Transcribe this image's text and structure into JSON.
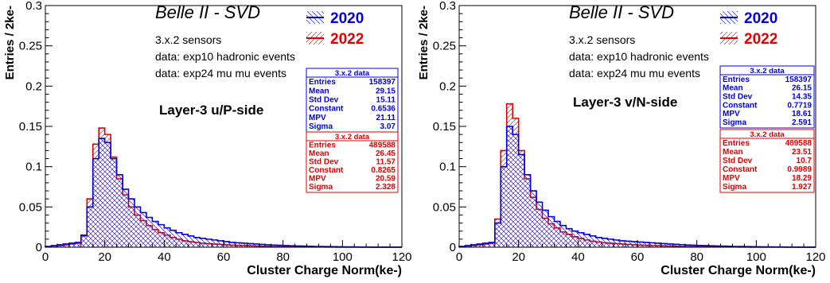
{
  "chart_data": [
    {
      "type": "histogram",
      "title": "Belle II - SVD",
      "layer_label": "Layer-3 u/P-side",
      "info_lines": [
        "3.x.2 sensors",
        "data: exp10 hadronic events",
        "data: exp24 mu mu events"
      ],
      "xlabel": "Cluster Charge Norm(ke-)",
      "ylabel": "Entries / 2ke-",
      "xlim": [
        0,
        120
      ],
      "ylim": [
        0,
        0.3
      ],
      "xticks": [
        "0",
        "20",
        "40",
        "60",
        "80",
        "100",
        "120"
      ],
      "yticks": [
        "0",
        "0.05",
        "0.1",
        "0.15",
        "0.2",
        "0.25",
        "0.3"
      ],
      "legend": [
        {
          "name": "2020",
          "color": "#0000e0"
        },
        {
          "name": "2022",
          "color": "#e00000"
        }
      ],
      "stat_boxes": [
        {
          "title": "3.x.2 data",
          "color": "#0000e0",
          "rows": [
            [
              "Entries",
              "158397"
            ],
            [
              "Mean",
              "29.15"
            ],
            [
              "Std Dev",
              "15.11"
            ],
            [
              "Constant",
              "0.6536"
            ],
            [
              "MPV",
              "21.11"
            ],
            [
              "Sigma",
              "3.07"
            ]
          ]
        },
        {
          "title": "3.x.2 data",
          "color": "#e00000",
          "rows": [
            [
              "Entries",
              "489588"
            ],
            [
              "Mean",
              "26.45"
            ],
            [
              "Std Dev",
              "11.57"
            ],
            [
              "Constant",
              "0.8265"
            ],
            [
              "MPV",
              "20.59"
            ],
            [
              "Sigma",
              "2.328"
            ]
          ]
        }
      ],
      "series": [
        {
          "name": "2020",
          "color": "#0000e0",
          "bin_edges_start": 0,
          "bin_width": 2,
          "values": [
            0.001,
            0.002,
            0.003,
            0.004,
            0.005,
            0.006,
            0.015,
            0.05,
            0.11,
            0.135,
            0.13,
            0.11,
            0.09,
            0.072,
            0.06,
            0.05,
            0.043,
            0.037,
            0.032,
            0.028,
            0.024,
            0.021,
            0.018,
            0.016,
            0.014,
            0.012,
            0.011,
            0.01,
            0.009,
            0.008,
            0.007,
            0.006,
            0.0055,
            0.005,
            0.0045,
            0.004,
            0.0035,
            0.003,
            0.0027,
            0.0024,
            0.002,
            0.0018,
            0.0016,
            0.0014,
            0.0012,
            0.001,
            0.0009,
            0.0008,
            0.0007,
            0.0006,
            0.0005,
            0.0004,
            0.0003,
            0.0002,
            0.0002,
            0.0001,
            0.0001,
            0.0001,
            0.0001,
            0.0001
          ]
        },
        {
          "name": "2022",
          "color": "#e00000",
          "bin_edges_start": 0,
          "bin_width": 2,
          "values": [
            0.001,
            0.0015,
            0.002,
            0.003,
            0.004,
            0.005,
            0.014,
            0.06,
            0.128,
            0.148,
            0.14,
            0.112,
            0.085,
            0.065,
            0.05,
            0.04,
            0.033,
            0.027,
            0.022,
            0.018,
            0.015,
            0.012,
            0.01,
            0.008,
            0.007,
            0.006,
            0.005,
            0.0045,
            0.004,
            0.0035,
            0.003,
            0.0026,
            0.0022,
            0.002,
            0.0018,
            0.0015,
            0.0013,
            0.0011,
            0.001,
            0.0009,
            0.0008,
            0.0007,
            0.0006,
            0.0005,
            0.0004,
            0.0003,
            0.0003,
            0.0002,
            0.0002,
            0.0001,
            0.0001,
            0.0001,
            0.0001,
            0.0001,
            0.0001,
            0.0001,
            0.0001,
            0.0001,
            0.0001,
            0.0001
          ]
        }
      ]
    },
    {
      "type": "histogram",
      "title": "Belle II - SVD",
      "layer_label": "Layer-3 v/N-side",
      "info_lines": [
        "3.x.2 sensors",
        "data: exp10 hadronic events",
        "data: exp24 mu mu events"
      ],
      "xlabel": "Cluster Charge Norm(ke-)",
      "ylabel": "Entries / 2ke-",
      "xlim": [
        0,
        120
      ],
      "ylim": [
        0,
        0.3
      ],
      "xticks": [
        "0",
        "20",
        "40",
        "60",
        "80",
        "100",
        "120"
      ],
      "yticks": [
        "0",
        "0.05",
        "0.1",
        "0.15",
        "0.2",
        "0.25",
        "0.3"
      ],
      "legend": [
        {
          "name": "2020",
          "color": "#0000e0"
        },
        {
          "name": "2022",
          "color": "#e00000"
        }
      ],
      "stat_boxes": [
        {
          "title": "3.x.2 data",
          "color": "#0000e0",
          "rows": [
            [
              "Entries",
              "158397"
            ],
            [
              "Mean",
              "26.15"
            ],
            [
              "Std Dev",
              "14.35"
            ],
            [
              "Constant",
              "0.7719"
            ],
            [
              "MPV",
              "18.61"
            ],
            [
              "Sigma",
              "2.591"
            ]
          ]
        },
        {
          "title": "3.x.2 data",
          "color": "#e00000",
          "rows": [
            [
              "Entries",
              "489588"
            ],
            [
              "Mean",
              "23.51"
            ],
            [
              "Std Dev",
              "10.7"
            ],
            [
              "Constant",
              "0.9989"
            ],
            [
              "MPV",
              "18.29"
            ],
            [
              "Sigma",
              "1.927"
            ]
          ]
        }
      ],
      "series": [
        {
          "name": "2020",
          "color": "#0000e0",
          "bin_edges_start": 0,
          "bin_width": 2,
          "values": [
            0.001,
            0.002,
            0.003,
            0.004,
            0.005,
            0.006,
            0.03,
            0.1,
            0.15,
            0.14,
            0.115,
            0.09,
            0.07,
            0.056,
            0.046,
            0.038,
            0.032,
            0.027,
            0.023,
            0.02,
            0.018,
            0.016,
            0.014,
            0.012,
            0.011,
            0.01,
            0.009,
            0.008,
            0.0075,
            0.007,
            0.0065,
            0.006,
            0.0055,
            0.005,
            0.0045,
            0.004,
            0.0036,
            0.0032,
            0.0028,
            0.0025,
            0.0022,
            0.002,
            0.0018,
            0.0016,
            0.0014,
            0.0012,
            0.001,
            0.0009,
            0.0008,
            0.0007,
            0.0006,
            0.0005,
            0.0004,
            0.0003,
            0.0003,
            0.0002,
            0.0002,
            0.0001,
            0.0001,
            0.0001
          ]
        },
        {
          "name": "2022",
          "color": "#e00000",
          "bin_edges_start": 0,
          "bin_width": 2,
          "values": [
            0.001,
            0.0015,
            0.002,
            0.003,
            0.004,
            0.005,
            0.035,
            0.12,
            0.178,
            0.16,
            0.12,
            0.085,
            0.062,
            0.047,
            0.036,
            0.029,
            0.024,
            0.019,
            0.016,
            0.013,
            0.011,
            0.009,
            0.0075,
            0.0065,
            0.0055,
            0.005,
            0.0045,
            0.004,
            0.0035,
            0.003,
            0.0027,
            0.0024,
            0.0021,
            0.0019,
            0.0017,
            0.0015,
            0.0013,
            0.0011,
            0.001,
            0.0009,
            0.0008,
            0.0007,
            0.0006,
            0.0005,
            0.0004,
            0.0003,
            0.0003,
            0.0002,
            0.0002,
            0.0001,
            0.0001,
            0.0001,
            0.0001,
            0.0001,
            0.0001,
            0.0001,
            0.0001,
            0.0001,
            0.0001,
            0.0001
          ]
        }
      ]
    }
  ]
}
